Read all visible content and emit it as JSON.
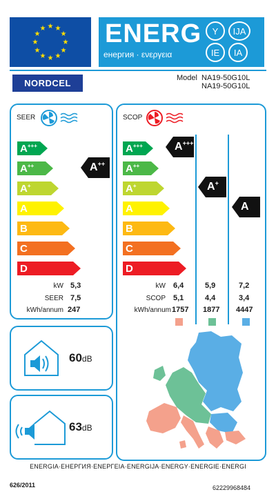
{
  "header": {
    "energy_word": "ENERG",
    "energy_subtitle": "енергия · ενεργεια",
    "lang_codes": [
      "Y",
      "IJA",
      "IE",
      "IA"
    ],
    "colors": {
      "eu_blue": "#0e4ea5",
      "energy_blue": "#1c9ad7",
      "star_yellow": "#ffdd00"
    }
  },
  "supplier": {
    "brand": "NORDCEL",
    "model_label": "Model",
    "model_line1": "NA19-50G10L",
    "model_line2": "NA19-50G10L"
  },
  "efficiency_classes": [
    "A+++",
    "A++",
    "A+",
    "A",
    "B",
    "C",
    "D"
  ],
  "seer": {
    "title": "SEER",
    "icon": "snowflake-fan-icon",
    "rating": "A++",
    "rows": [
      {
        "label": "kW",
        "value": "5,3"
      },
      {
        "label": "SEER",
        "value": "7,5"
      },
      {
        "label": "kWh/annum",
        "value": "247"
      }
    ]
  },
  "scop": {
    "title": "SCOP",
    "icon": "heating-fan-icon",
    "zones": [
      {
        "rating": "A+++",
        "kw": "6,4",
        "scop": "5,1",
        "kwh": "1757",
        "color": "#f4a18c"
      },
      {
        "rating": "A+",
        "kw": "5,9",
        "scop": "4,4",
        "kwh": "1877",
        "color": "#6dc197"
      },
      {
        "rating": "A",
        "kw": "7,2",
        "scop": "3,4",
        "kwh": "4447",
        "color": "#5aaee5"
      }
    ],
    "row_labels": {
      "kw": "kW",
      "scop": "SCOP",
      "kwh": "kWh/annum"
    }
  },
  "noise": {
    "indoor": {
      "value": "60",
      "unit": "dB",
      "icon": "indoor-speaker-icon"
    },
    "outdoor": {
      "value": "63",
      "unit": "dB",
      "icon": "outdoor-speaker-icon"
    }
  },
  "footer": {
    "languages": "ENERGIA·ЕНЕРГИЯ·ΕΝΕΡΓΕΙΑ·ENERGIJA·ENERGY·ENERGIE·ENERGI",
    "regulation": "626/2011",
    "code": "62229968484"
  }
}
